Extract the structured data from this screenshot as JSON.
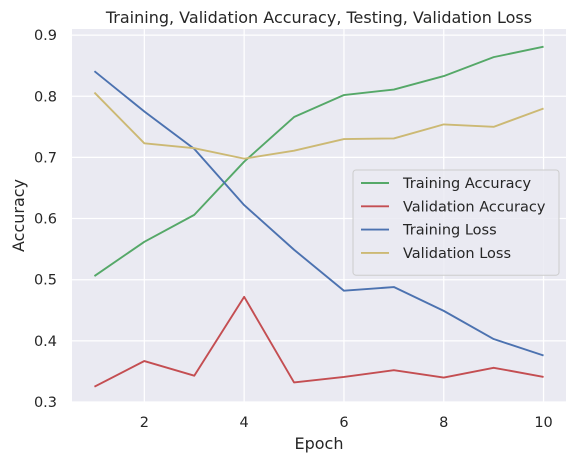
{
  "chart_data": {
    "type": "line",
    "title": "Training, Validation Accuracy, Testing, Validation Loss",
    "xlabel": "Epoch",
    "ylabel": "Accuracy",
    "x": [
      1,
      2,
      3,
      4,
      5,
      6,
      7,
      8,
      9,
      10
    ],
    "xlim": [
      0.55,
      10.45
    ],
    "ylim": [
      0.3,
      0.91
    ],
    "xticks": [
      2,
      4,
      6,
      8,
      10
    ],
    "yticks": [
      0.3,
      0.4,
      0.5,
      0.6,
      0.7,
      0.8,
      0.9
    ],
    "xtick_labels": [
      "2",
      "4",
      "6",
      "8",
      "10"
    ],
    "ytick_labels": [
      "0.3",
      "0.4",
      "0.5",
      "0.6",
      "0.7",
      "0.8",
      "0.9"
    ],
    "grid": true,
    "legend_position": "center-right",
    "series": [
      {
        "name": "Training Accuracy",
        "color": "#55a868",
        "values": [
          0.506,
          0.562,
          0.606,
          0.693,
          0.766,
          0.802,
          0.811,
          0.833,
          0.864,
          0.881
        ]
      },
      {
        "name": "Validation Accuracy",
        "color": "#c44e52",
        "values": [
          0.325,
          0.367,
          0.343,
          0.472,
          0.332,
          0.341,
          0.352,
          0.34,
          0.356,
          0.341
        ]
      },
      {
        "name": "Training Loss",
        "color": "#4c72b0",
        "values": [
          0.841,
          0.775,
          0.714,
          0.622,
          0.549,
          0.482,
          0.488,
          0.449,
          0.403,
          0.376
        ]
      },
      {
        "name": "Validation Loss",
        "color": "#ccb974",
        "values": [
          0.806,
          0.723,
          0.715,
          0.698,
          0.711,
          0.73,
          0.731,
          0.754,
          0.75,
          0.78
        ]
      }
    ]
  }
}
